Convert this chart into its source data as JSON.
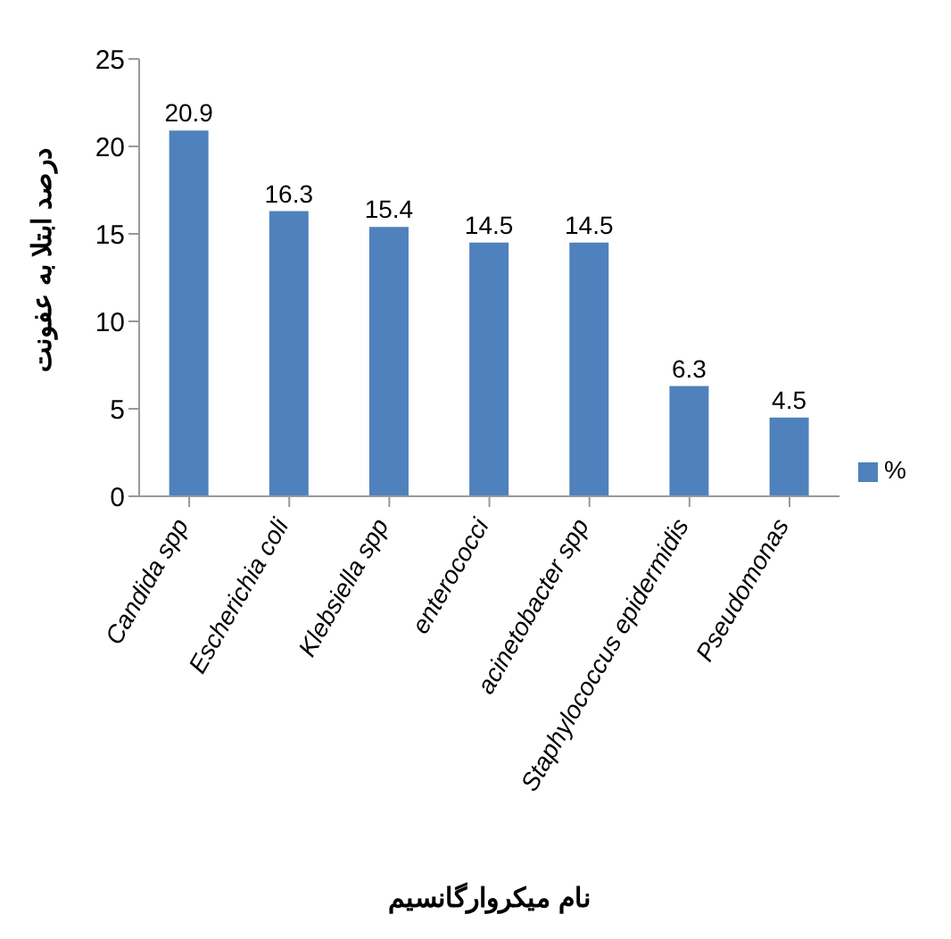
{
  "chart_data": {
    "type": "bar",
    "ylabel": "درصد ابتلا به عفونت",
    "xlabel": "نام میکروارگانسیم",
    "categories": [
      "Candida spp",
      "Escherichia coli",
      "Klebsiella spp",
      "enterococci",
      "acinetobacter spp",
      "Staphylococcus epidermidis",
      "Pseudomonas"
    ],
    "series": [
      {
        "name": "%",
        "color": "#4f81bd",
        "values": [
          20.9,
          16.3,
          15.4,
          14.5,
          14.5,
          6.3,
          4.5
        ]
      }
    ],
    "ylim": [
      0,
      25
    ],
    "yticks": [
      0,
      5,
      10,
      15,
      20,
      25
    ],
    "grid": false,
    "legend": "right",
    "data_labels": true
  }
}
